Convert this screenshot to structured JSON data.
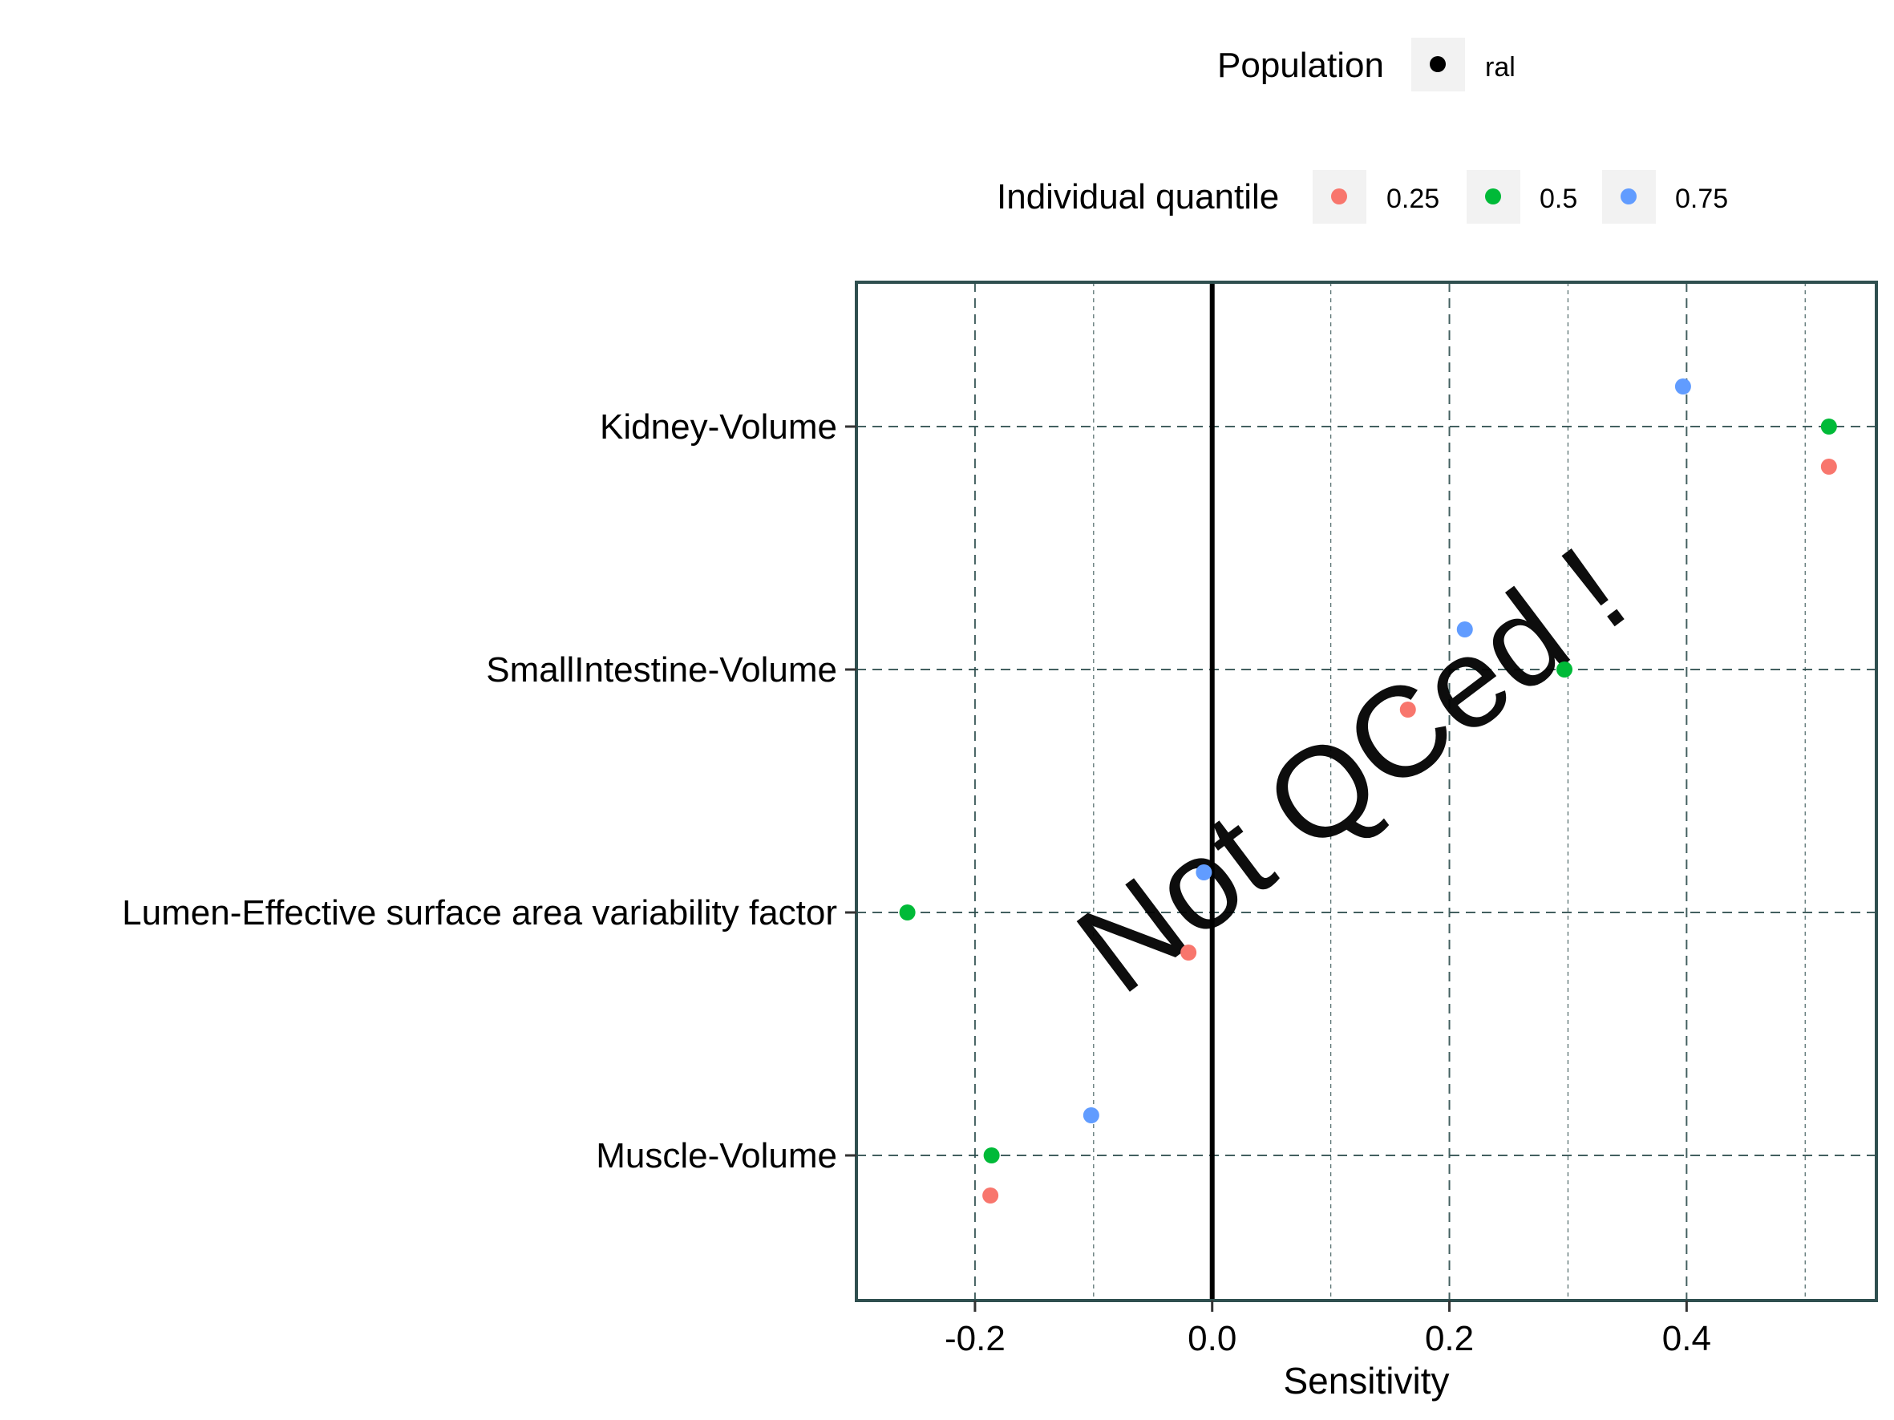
{
  "legend": {
    "population": {
      "title": "Population",
      "items": [
        {
          "label": "ral",
          "color": "#000000"
        }
      ]
    },
    "quantile": {
      "title": "Individual quantile",
      "items": [
        {
          "label": "0.25",
          "color": "#F8766D"
        },
        {
          "label": "0.5",
          "color": "#00BA38"
        },
        {
          "label": "0.75",
          "color": "#619CFF"
        }
      ]
    }
  },
  "watermark": "Not QCed !",
  "chart_data": {
    "type": "scatter",
    "title": "",
    "xlabel": "Sensitivity",
    "ylabel": "",
    "xlim": [
      -0.3,
      0.56
    ],
    "x_ticks": [
      -0.2,
      0.0,
      0.2,
      0.4
    ],
    "x_tick_labels": [
      "-0.2",
      "0.0",
      "0.2",
      "0.4"
    ],
    "reference_line_x": 0,
    "categories": [
      "Kidney-Volume",
      "SmallIntestine-Volume",
      "Lumen-Effective surface area variability factor",
      "Muscle-Volume"
    ],
    "series": [
      {
        "name": "0.25",
        "color": "#F8766D",
        "values": [
          0.52,
          0.165,
          -0.02,
          -0.187
        ]
      },
      {
        "name": "0.5",
        "color": "#00BA38",
        "values": [
          0.52,
          0.297,
          -0.257,
          -0.186
        ]
      },
      {
        "name": "0.75",
        "color": "#619CFF",
        "values": [
          0.397,
          0.213,
          -0.007,
          -0.102
        ]
      }
    ],
    "grid": true,
    "legend_position": "top"
  }
}
